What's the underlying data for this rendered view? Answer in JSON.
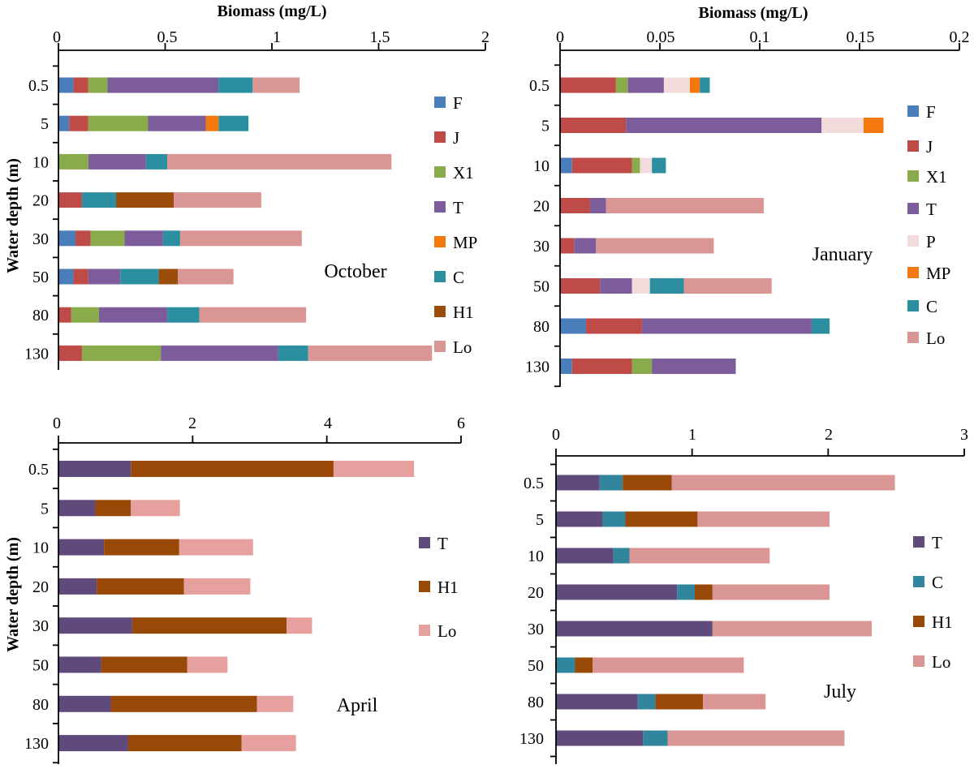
{
  "chart_data": [
    {
      "type": "bar",
      "orientation": "horizontal",
      "stacked": true,
      "annotation": "October",
      "xlabel": "Biomass (mg/L)",
      "ylabel": "Water depth (m)",
      "xlim": [
        0,
        2
      ],
      "xticks": [
        "0",
        "0.5",
        "1",
        "1.5",
        "2"
      ],
      "categories": [
        "0.5",
        "5",
        "10",
        "20",
        "30",
        "50",
        "80",
        "130"
      ],
      "series": [
        {
          "name": "F",
          "color": "#4a7ebb",
          "values": [
            0.07,
            0.05,
            0,
            0,
            0.08,
            0.07,
            0,
            0
          ]
        },
        {
          "name": "J",
          "color": "#be4b48",
          "values": [
            0.07,
            0.09,
            0,
            0.11,
            0.07,
            0.07,
            0.06,
            0.11
          ]
        },
        {
          "name": "X1",
          "color": "#8aab4b",
          "values": [
            0.09,
            0.28,
            0.14,
            0,
            0.16,
            0,
            0.13,
            0.37
          ]
        },
        {
          "name": "T",
          "color": "#7d5c9c",
          "values": [
            0.52,
            0.27,
            0.27,
            0,
            0.18,
            0.15,
            0.32,
            0.55
          ]
        },
        {
          "name": "MP",
          "color": "#f3790f",
          "values": [
            0,
            0.06,
            0,
            0,
            0,
            0,
            0,
            0
          ]
        },
        {
          "name": "C",
          "color": "#2b8fa0",
          "values": [
            0.16,
            0.14,
            0.1,
            0.16,
            0.08,
            0.18,
            0.15,
            0.14
          ]
        },
        {
          "name": "H1",
          "color": "#9b4d0c",
          "values": [
            0,
            0,
            0,
            0.27,
            0,
            0.09,
            0,
            0
          ]
        },
        {
          "name": "Lo",
          "color": "#d99694",
          "values": [
            0.22,
            0,
            1.05,
            0.41,
            0.57,
            0.26,
            0.5,
            0.58
          ]
        }
      ]
    },
    {
      "type": "bar",
      "orientation": "horizontal",
      "stacked": true,
      "annotation": "January",
      "xlabel": "Biomass (mg/L)",
      "ylabel": "",
      "xlim": [
        0,
        0.2
      ],
      "xticks": [
        "0",
        "0.05",
        "0.1",
        "0.15",
        "0.2"
      ],
      "categories": [
        "0.5",
        "5",
        "10",
        "20",
        "30",
        "50",
        "80",
        "130"
      ],
      "series": [
        {
          "name": "F",
          "color": "#4a7ebb",
          "values": [
            0,
            0,
            0.006,
            0,
            0,
            0,
            0.013,
            0.006
          ]
        },
        {
          "name": "J",
          "color": "#be4b48",
          "values": [
            0.028,
            0.033,
            0.03,
            0.015,
            0.007,
            0.02,
            0.028,
            0.03
          ]
        },
        {
          "name": "X1",
          "color": "#8aab4b",
          "values": [
            0.006,
            0,
            0.004,
            0,
            0,
            0,
            0,
            0.01
          ]
        },
        {
          "name": "T",
          "color": "#7d5c9c",
          "values": [
            0.018,
            0.098,
            0,
            0.008,
            0.011,
            0.016,
            0.085,
            0.042
          ]
        },
        {
          "name": "P",
          "color": "#f2dcdb",
          "values": [
            0.013,
            0.021,
            0.006,
            0,
            0,
            0.009,
            0,
            0
          ]
        },
        {
          "name": "MP",
          "color": "#f3790f",
          "values": [
            0.005,
            0.01,
            0,
            0,
            0,
            0,
            0,
            0
          ]
        },
        {
          "name": "C",
          "color": "#2b8fa0",
          "values": [
            0.005,
            0,
            0.007,
            0,
            0,
            0.017,
            0.009,
            0
          ]
        },
        {
          "name": "Lo",
          "color": "#d99694",
          "values": [
            0,
            0,
            0,
            0.079,
            0.059,
            0.044,
            0,
            0
          ]
        }
      ]
    },
    {
      "type": "bar",
      "orientation": "horizontal",
      "stacked": true,
      "annotation": "April",
      "xlabel": "",
      "ylabel": "Water depth (m)",
      "xlim": [
        0,
        6
      ],
      "xticks": [
        "0",
        "2",
        "4",
        "6"
      ],
      "categories": [
        "0.5",
        "5",
        "10",
        "20",
        "30",
        "50",
        "80",
        "130"
      ],
      "series": [
        {
          "name": "T",
          "color": "#5f4a7b",
          "values": [
            1.08,
            0.55,
            0.68,
            0.57,
            1.1,
            0.64,
            0.78,
            1.04
          ]
        },
        {
          "name": "H1",
          "color": "#984807",
          "values": [
            3.02,
            0.53,
            1.12,
            1.3,
            2.3,
            1.28,
            2.18,
            1.69
          ]
        },
        {
          "name": "Lo",
          "color": "#e6a09e",
          "values": [
            1.2,
            0.73,
            1.1,
            0.99,
            0.38,
            0.6,
            0.54,
            0.81
          ]
        }
      ]
    },
    {
      "type": "bar",
      "orientation": "horizontal",
      "stacked": true,
      "annotation": "July",
      "xlabel": "",
      "ylabel": "",
      "xlim": [
        0,
        3
      ],
      "xticks": [
        "0",
        "1",
        "2",
        "3"
      ],
      "categories": [
        "0.5",
        "5",
        "10",
        "20",
        "30",
        "50",
        "80",
        "130"
      ],
      "series": [
        {
          "name": "T",
          "color": "#5f4a7b",
          "values": [
            0.32,
            0.34,
            0.42,
            0.89,
            1.15,
            0,
            0.6,
            0.64
          ]
        },
        {
          "name": "C",
          "color": "#31859c",
          "values": [
            0.17,
            0.17,
            0.12,
            0.13,
            0,
            0.14,
            0.13,
            0.18
          ]
        },
        {
          "name": "H1",
          "color": "#984807",
          "values": [
            0.36,
            0.53,
            0,
            0.13,
            0,
            0.13,
            0.35,
            0
          ]
        },
        {
          "name": "Lo",
          "color": "#d99694",
          "values": [
            1.64,
            0.97,
            1.03,
            0.86,
            1.17,
            1.11,
            0.46,
            1.3
          ]
        }
      ]
    }
  ]
}
